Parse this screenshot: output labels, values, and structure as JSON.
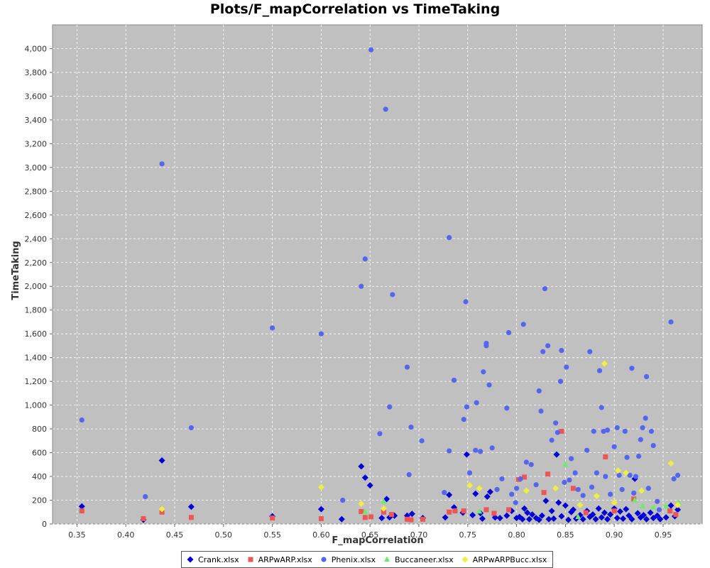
{
  "chart_data": {
    "type": "scatter",
    "title": "Plots/F_mapCorrelation vs TimeTaking",
    "xlabel": "F_mapCorrelation",
    "ylabel": "TimeTaking",
    "xlim": [
      0.325,
      0.99
    ],
    "ylim": [
      0,
      4200
    ],
    "xticks": [
      "0.35",
      "0.40",
      "0.45",
      "0.50",
      "0.55",
      "0.60",
      "0.65",
      "0.70",
      "0.75",
      "0.80",
      "0.85",
      "0.90",
      "0.95"
    ],
    "yticks": [
      "0",
      "200",
      "400",
      "600",
      "800",
      "1,000",
      "1,200",
      "1,400",
      "1,600",
      "1,800",
      "2,000",
      "2,200",
      "2,400",
      "2,600",
      "2,800",
      "3,000",
      "3,200",
      "3,400",
      "3,600",
      "3,800",
      "4,000"
    ],
    "grid": true,
    "legend_position": "bottom",
    "background": "#c0c0c0",
    "series": [
      {
        "name": "Crank.xlsx",
        "color": "#0000dd",
        "marker": "diamond",
        "points": [
          [
            0.355,
            148
          ],
          [
            0.418,
            35
          ],
          [
            0.437,
            535
          ],
          [
            0.467,
            145
          ],
          [
            0.55,
            65
          ],
          [
            0.6,
            125
          ],
          [
            0.621,
            40
          ],
          [
            0.641,
            485
          ],
          [
            0.645,
            390
          ],
          [
            0.65,
            325
          ],
          [
            0.662,
            50
          ],
          [
            0.667,
            210
          ],
          [
            0.67,
            55
          ],
          [
            0.675,
            70
          ],
          [
            0.688,
            70
          ],
          [
            0.693,
            85
          ],
          [
            0.704,
            50
          ],
          [
            0.727,
            55
          ],
          [
            0.731,
            245
          ],
          [
            0.736,
            140
          ],
          [
            0.745,
            95
          ],
          [
            0.749,
            585
          ],
          [
            0.755,
            75
          ],
          [
            0.758,
            255
          ],
          [
            0.763,
            90
          ],
          [
            0.765,
            45
          ],
          [
            0.77,
            230
          ],
          [
            0.773,
            270
          ],
          [
            0.778,
            55
          ],
          [
            0.783,
            50
          ],
          [
            0.79,
            70
          ],
          [
            0.795,
            110
          ],
          [
            0.8,
            50
          ],
          [
            0.803,
            60
          ],
          [
            0.806,
            40
          ],
          [
            0.808,
            130
          ],
          [
            0.811,
            95
          ],
          [
            0.813,
            40
          ],
          [
            0.816,
            80
          ],
          [
            0.82,
            50
          ],
          [
            0.823,
            35
          ],
          [
            0.826,
            70
          ],
          [
            0.83,
            195
          ],
          [
            0.833,
            40
          ],
          [
            0.836,
            110
          ],
          [
            0.838,
            45
          ],
          [
            0.841,
            585
          ],
          [
            0.843,
            180
          ],
          [
            0.846,
            65
          ],
          [
            0.85,
            155
          ],
          [
            0.853,
            35
          ],
          [
            0.856,
            100
          ],
          [
            0.858,
            120
          ],
          [
            0.861,
            45
          ],
          [
            0.865,
            75
          ],
          [
            0.868,
            40
          ],
          [
            0.872,
            110
          ],
          [
            0.875,
            60
          ],
          [
            0.878,
            80
          ],
          [
            0.881,
            40
          ],
          [
            0.884,
            130
          ],
          [
            0.887,
            55
          ],
          [
            0.89,
            95
          ],
          [
            0.893,
            40
          ],
          [
            0.896,
            80
          ],
          [
            0.9,
            130
          ],
          [
            0.903,
            50
          ],
          [
            0.906,
            105
          ],
          [
            0.909,
            45
          ],
          [
            0.912,
            125
          ],
          [
            0.915,
            70
          ],
          [
            0.918,
            40
          ],
          [
            0.921,
            380
          ],
          [
            0.924,
            90
          ],
          [
            0.927,
            55
          ],
          [
            0.93,
            75
          ],
          [
            0.933,
            40
          ],
          [
            0.937,
            95
          ],
          [
            0.94,
            50
          ],
          [
            0.944,
            70
          ],
          [
            0.947,
            40
          ],
          [
            0.953,
            55
          ],
          [
            0.958,
            155
          ],
          [
            0.962,
            65
          ],
          [
            0.965,
            120
          ]
        ]
      },
      {
        "name": "ARPwARP.xlsx",
        "color": "#ee5555",
        "marker": "square",
        "points": [
          [
            0.355,
            110
          ],
          [
            0.418,
            45
          ],
          [
            0.437,
            100
          ],
          [
            0.467,
            55
          ],
          [
            0.55,
            50
          ],
          [
            0.6,
            45
          ],
          [
            0.641,
            105
          ],
          [
            0.645,
            55
          ],
          [
            0.651,
            60
          ],
          [
            0.664,
            100
          ],
          [
            0.672,
            80
          ],
          [
            0.688,
            40
          ],
          [
            0.692,
            35
          ],
          [
            0.704,
            40
          ],
          [
            0.731,
            100
          ],
          [
            0.737,
            110
          ],
          [
            0.746,
            110
          ],
          [
            0.769,
            120
          ],
          [
            0.777,
            90
          ],
          [
            0.792,
            120
          ],
          [
            0.802,
            375
          ],
          [
            0.808,
            395
          ],
          [
            0.828,
            265
          ],
          [
            0.832,
            420
          ],
          [
            0.846,
            780
          ],
          [
            0.858,
            300
          ],
          [
            0.871,
            95
          ],
          [
            0.891,
            565
          ],
          [
            0.9,
            110
          ],
          [
            0.92,
            210
          ],
          [
            0.957,
            110
          ],
          [
            0.963,
            80
          ]
        ]
      },
      {
        "name": "Phenix.xlsx",
        "color": "#5566ee",
        "marker": "circle",
        "points": [
          [
            0.355,
            875
          ],
          [
            0.42,
            230
          ],
          [
            0.437,
            3030
          ],
          [
            0.467,
            810
          ],
          [
            0.55,
            1650
          ],
          [
            0.6,
            1600
          ],
          [
            0.622,
            200
          ],
          [
            0.641,
            2000
          ],
          [
            0.645,
            2230
          ],
          [
            0.651,
            3990
          ],
          [
            0.66,
            760
          ],
          [
            0.666,
            3490
          ],
          [
            0.67,
            985
          ],
          [
            0.673,
            1930
          ],
          [
            0.688,
            1320
          ],
          [
            0.69,
            415
          ],
          [
            0.692,
            815
          ],
          [
            0.703,
            700
          ],
          [
            0.726,
            265
          ],
          [
            0.731,
            2410
          ],
          [
            0.731,
            615
          ],
          [
            0.736,
            1210
          ],
          [
            0.746,
            880
          ],
          [
            0.748,
            1870
          ],
          [
            0.749,
            985
          ],
          [
            0.752,
            430
          ],
          [
            0.758,
            620
          ],
          [
            0.759,
            1020
          ],
          [
            0.763,
            610
          ],
          [
            0.766,
            1280
          ],
          [
            0.769,
            1500
          ],
          [
            0.769,
            1520
          ],
          [
            0.772,
            1170
          ],
          [
            0.775,
            640
          ],
          [
            0.78,
            290
          ],
          [
            0.785,
            380
          ],
          [
            0.79,
            975
          ],
          [
            0.792,
            1610
          ],
          [
            0.795,
            250
          ],
          [
            0.799,
            180
          ],
          [
            0.8,
            300
          ],
          [
            0.804,
            380
          ],
          [
            0.807,
            1680
          ],
          [
            0.81,
            520
          ],
          [
            0.815,
            500
          ],
          [
            0.82,
            330
          ],
          [
            0.823,
            1120
          ],
          [
            0.825,
            950
          ],
          [
            0.827,
            1450
          ],
          [
            0.829,
            1980
          ],
          [
            0.832,
            1500
          ],
          [
            0.836,
            705
          ],
          [
            0.84,
            850
          ],
          [
            0.842,
            770
          ],
          [
            0.845,
            1200
          ],
          [
            0.846,
            1460
          ],
          [
            0.849,
            350
          ],
          [
            0.851,
            1320
          ],
          [
            0.854,
            370
          ],
          [
            0.856,
            550
          ],
          [
            0.86,
            430
          ],
          [
            0.863,
            290
          ],
          [
            0.868,
            240
          ],
          [
            0.872,
            620
          ],
          [
            0.875,
            1450
          ],
          [
            0.877,
            310
          ],
          [
            0.879,
            780
          ],
          [
            0.882,
            430
          ],
          [
            0.885,
            1290
          ],
          [
            0.887,
            980
          ],
          [
            0.889,
            780
          ],
          [
            0.891,
            400
          ],
          [
            0.893,
            790
          ],
          [
            0.896,
            250
          ],
          [
            0.9,
            650
          ],
          [
            0.903,
            810
          ],
          [
            0.905,
            410
          ],
          [
            0.908,
            290
          ],
          [
            0.911,
            780
          ],
          [
            0.913,
            560
          ],
          [
            0.916,
            410
          ],
          [
            0.918,
            1310
          ],
          [
            0.92,
            260
          ],
          [
            0.922,
            400
          ],
          [
            0.925,
            570
          ],
          [
            0.927,
            710
          ],
          [
            0.929,
            810
          ],
          [
            0.932,
            890
          ],
          [
            0.933,
            1240
          ],
          [
            0.935,
            300
          ],
          [
            0.938,
            780
          ],
          [
            0.94,
            660
          ],
          [
            0.944,
            190
          ],
          [
            0.946,
            120
          ],
          [
            0.958,
            1700
          ],
          [
            0.961,
            380
          ],
          [
            0.965,
            410
          ]
        ]
      },
      {
        "name": "Buccaneer.xlsx",
        "color": "#66ee66",
        "marker": "triangle",
        "points": [
          [
            0.645,
            100
          ],
          [
            0.664,
            190
          ],
          [
            0.762,
            105
          ],
          [
            0.85,
            500
          ],
          [
            0.863,
            60
          ],
          [
            0.921,
            200
          ],
          [
            0.929,
            150
          ],
          [
            0.94,
            140
          ],
          [
            0.953,
            150
          ],
          [
            0.966,
            180
          ]
        ]
      },
      {
        "name": "ARPwARPBucc.xlsx",
        "color": "#eeee44",
        "marker": "diamond",
        "points": [
          [
            0.437,
            125
          ],
          [
            0.6,
            310
          ],
          [
            0.641,
            170
          ],
          [
            0.664,
            130
          ],
          [
            0.752,
            325
          ],
          [
            0.762,
            300
          ],
          [
            0.81,
            280
          ],
          [
            0.84,
            300
          ],
          [
            0.865,
            160
          ],
          [
            0.882,
            235
          ],
          [
            0.89,
            1350
          ],
          [
            0.9,
            180
          ],
          [
            0.904,
            450
          ],
          [
            0.912,
            430
          ],
          [
            0.928,
            280
          ],
          [
            0.958,
            510
          ],
          [
            0.965,
            160
          ]
        ]
      }
    ]
  }
}
